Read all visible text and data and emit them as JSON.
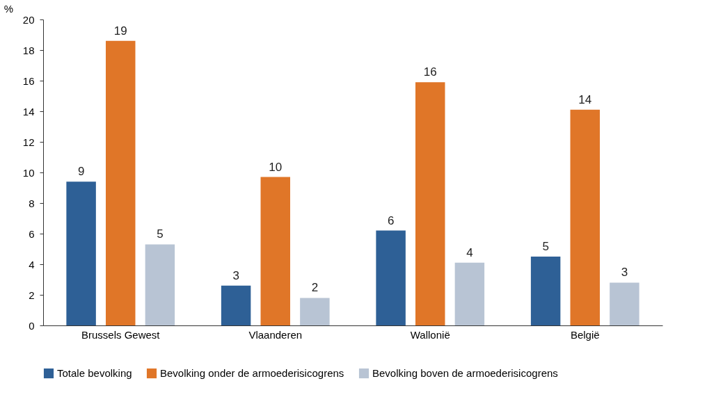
{
  "chart_data": {
    "type": "bar",
    "ylabel": "%",
    "categories": [
      "Brussels Gewest",
      "Vlaanderen",
      "Wallonië",
      "België"
    ],
    "series": [
      {
        "name": "Totale bevolking",
        "color": "#2e6096",
        "values": [
          9.4,
          2.6,
          6.2,
          4.5
        ],
        "value_labels": [
          "9",
          "3",
          "6",
          "5"
        ]
      },
      {
        "name": "Bevolking onder de armoederisicogrens",
        "color": "#e07628",
        "values": [
          18.6,
          9.7,
          15.9,
          14.1
        ],
        "value_labels": [
          "19",
          "10",
          "16",
          "14"
        ]
      },
      {
        "name": "Bevolking boven de armoederisicogrens",
        "color": "#b8c4d4",
        "values": [
          5.3,
          1.8,
          4.1,
          2.8
        ],
        "value_labels": [
          "5",
          "2",
          "4",
          "3"
        ]
      }
    ],
    "ylim": [
      0,
      20
    ],
    "yticks": [
      0,
      2,
      4,
      6,
      8,
      10,
      12,
      14,
      16,
      18,
      20
    ],
    "grid": false,
    "legend": "bottom"
  }
}
